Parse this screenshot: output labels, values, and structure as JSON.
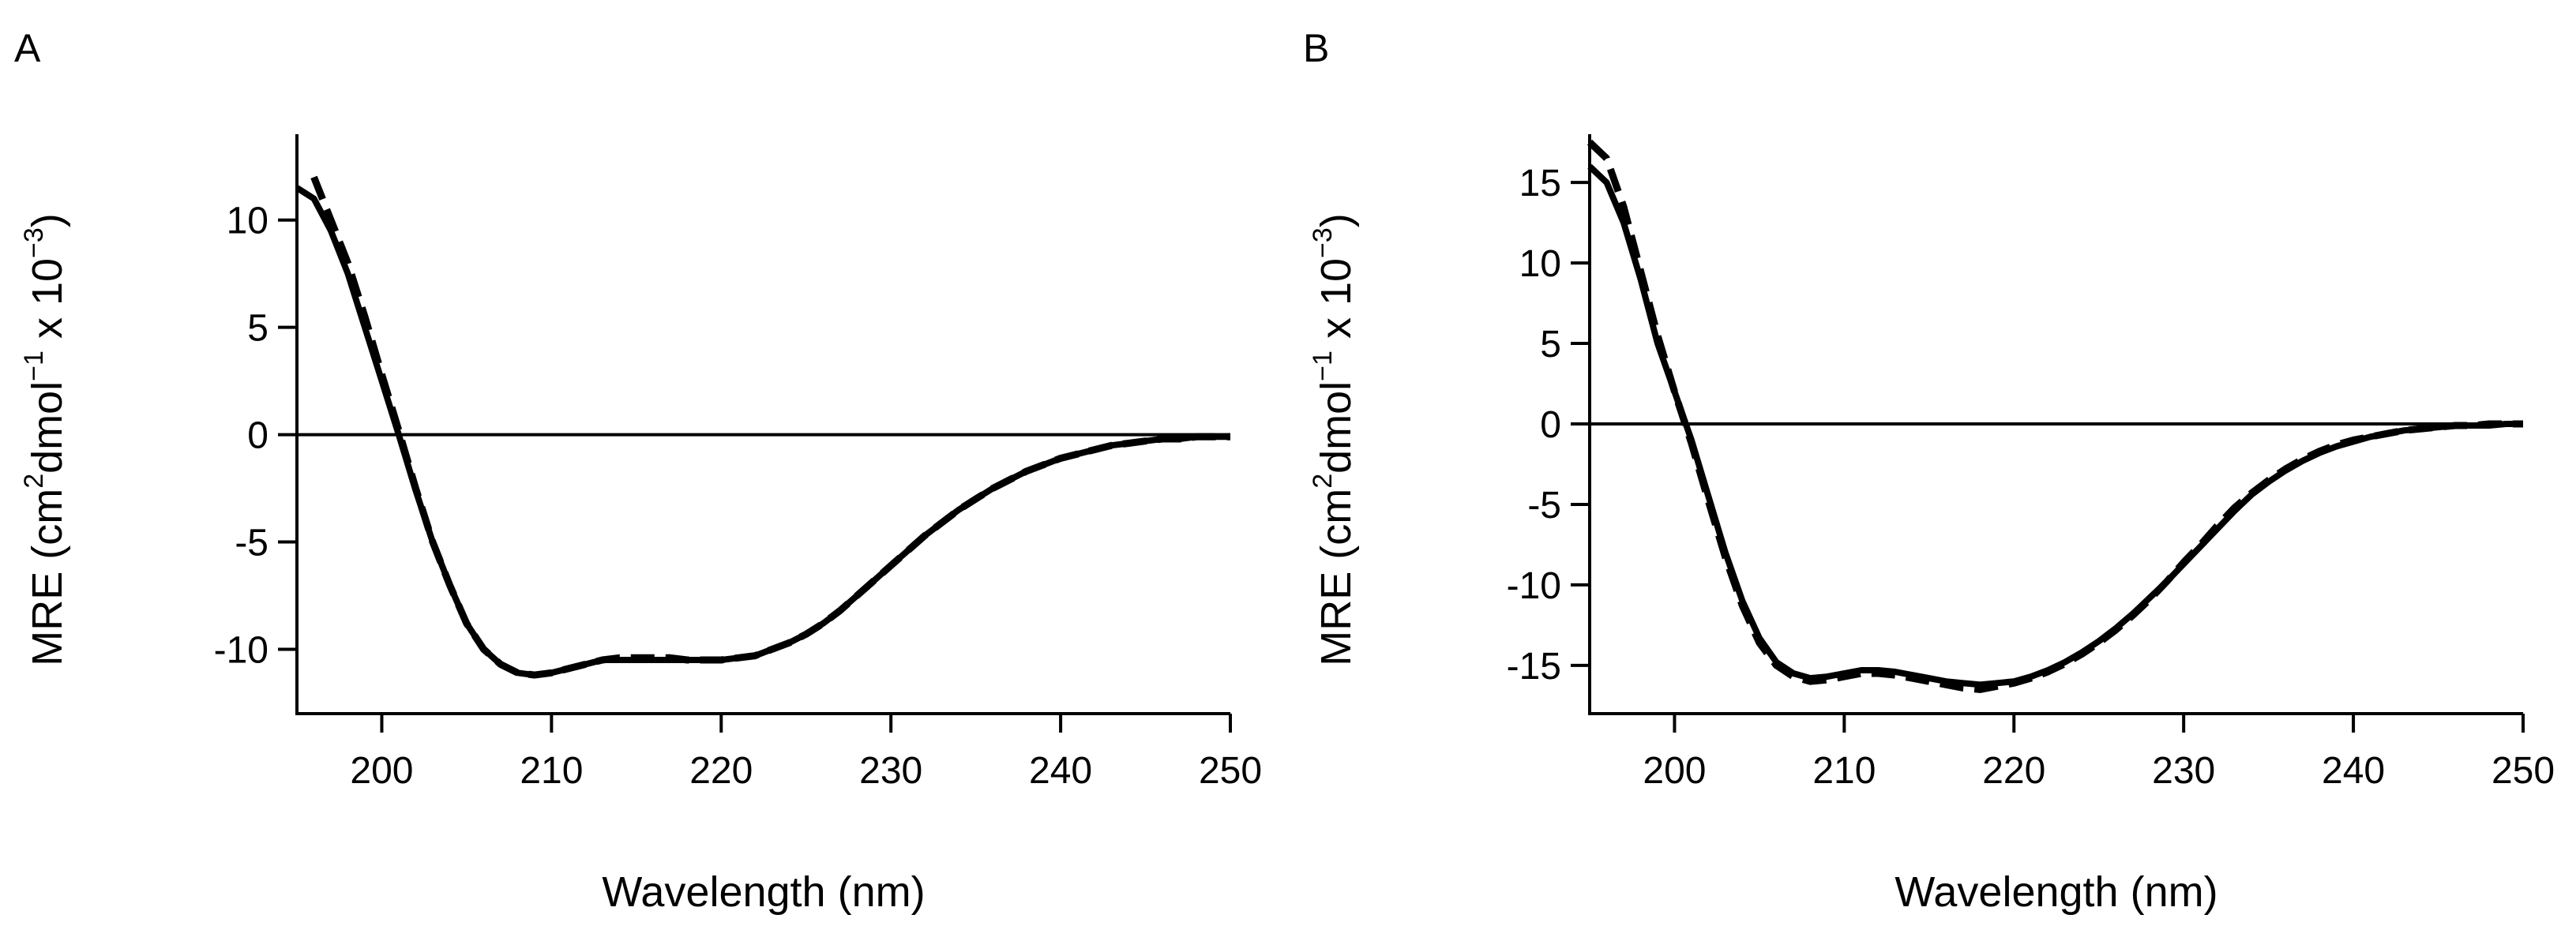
{
  "chart_data": [
    {
      "type": "line",
      "panel_label": "A",
      "xlabel": "Wavelength (nm)",
      "ylabel": {
        "prefix": "MRE (cm",
        "sup1": "2",
        "mid": "dmol",
        "sup2": "−1",
        "mid2": " x 10",
        "sup3": "−3",
        "suffix": ")"
      },
      "xlim": [
        195,
        250
      ],
      "ylim": [
        -13,
        14
      ],
      "xticks": [
        200,
        210,
        220,
        230,
        240,
        250
      ],
      "yticks": [
        -10,
        -5,
        0,
        5,
        10
      ],
      "zero_line": true,
      "series": [
        {
          "name": "solid",
          "style": "solid",
          "x": [
            195,
            196,
            197,
            198,
            199,
            200,
            201,
            202,
            203,
            204,
            205,
            206,
            207,
            208,
            209,
            210,
            211,
            212,
            213,
            214,
            215,
            216,
            217,
            218,
            219,
            220,
            221,
            222,
            223,
            224,
            225,
            226,
            227,
            228,
            229,
            230,
            231,
            232,
            233,
            234,
            235,
            236,
            237,
            238,
            239,
            240,
            241,
            242,
            243,
            244,
            245,
            246,
            247,
            248,
            249,
            250
          ],
          "y": [
            11.5,
            11.0,
            9.5,
            7.5,
            5.0,
            2.5,
            0.0,
            -2.6,
            -5.0,
            -7.0,
            -8.8,
            -10.0,
            -10.7,
            -11.1,
            -11.2,
            -11.1,
            -10.9,
            -10.7,
            -10.5,
            -10.5,
            -10.5,
            -10.5,
            -10.5,
            -10.5,
            -10.5,
            -10.5,
            -10.4,
            -10.3,
            -10.0,
            -9.7,
            -9.3,
            -8.8,
            -8.2,
            -7.5,
            -6.8,
            -6.1,
            -5.4,
            -4.7,
            -4.1,
            -3.5,
            -3.0,
            -2.5,
            -2.1,
            -1.7,
            -1.4,
            -1.1,
            -0.9,
            -0.7,
            -0.5,
            -0.4,
            -0.3,
            -0.2,
            -0.2,
            -0.1,
            -0.1,
            -0.1
          ]
        },
        {
          "name": "dashed",
          "style": "dashed",
          "x": [
            196,
            197,
            198,
            199,
            200,
            201,
            202,
            203,
            204,
            205,
            206,
            207,
            208,
            209,
            210,
            211,
            212,
            213,
            214,
            215,
            216,
            217,
            218,
            219,
            220,
            221,
            222,
            223,
            224,
            225,
            226,
            227,
            228,
            229,
            230,
            231,
            232,
            233,
            234,
            235,
            236,
            237,
            238,
            239,
            240,
            241,
            242,
            243,
            244,
            245,
            246,
            247,
            248,
            249,
            250
          ],
          "y": [
            12.0,
            10.0,
            8.0,
            5.5,
            2.8,
            0.2,
            -2.5,
            -5.0,
            -7.0,
            -8.8,
            -10.0,
            -10.7,
            -11.1,
            -11.2,
            -11.1,
            -10.9,
            -10.7,
            -10.5,
            -10.4,
            -10.4,
            -10.4,
            -10.4,
            -10.5,
            -10.5,
            -10.5,
            -10.4,
            -10.3,
            -10.0,
            -9.7,
            -9.3,
            -8.8,
            -8.2,
            -7.5,
            -6.8,
            -6.1,
            -5.4,
            -4.7,
            -4.1,
            -3.5,
            -3.0,
            -2.5,
            -2.1,
            -1.7,
            -1.4,
            -1.1,
            -0.9,
            -0.7,
            -0.5,
            -0.4,
            -0.3,
            -0.2,
            -0.2,
            -0.1,
            -0.1,
            -0.1
          ]
        }
      ]
    },
    {
      "type": "line",
      "panel_label": "B",
      "xlabel": "Wavelength (nm)",
      "ylabel": {
        "prefix": "MRE (cm",
        "sup1": "2",
        "mid": "dmol",
        "sup2": "−1",
        "mid2": " x 10",
        "sup3": "−3",
        "suffix": ")"
      },
      "xlim": [
        195,
        250
      ],
      "ylim": [
        -18,
        18
      ],
      "xticks": [
        200,
        210,
        220,
        230,
        240,
        250
      ],
      "yticks": [
        -15,
        -10,
        -5,
        0,
        5,
        10,
        15
      ],
      "zero_line": true,
      "series": [
        {
          "name": "solid",
          "style": "solid",
          "x": [
            195,
            196,
            197,
            198,
            199,
            200,
            201,
            202,
            203,
            204,
            205,
            206,
            207,
            208,
            209,
            210,
            211,
            212,
            213,
            214,
            215,
            216,
            217,
            218,
            219,
            220,
            221,
            222,
            223,
            224,
            225,
            226,
            227,
            228,
            229,
            230,
            231,
            232,
            233,
            234,
            235,
            236,
            237,
            238,
            239,
            240,
            241,
            242,
            243,
            244,
            245,
            246,
            247,
            248,
            249,
            250
          ],
          "y": [
            16.0,
            15.0,
            12.5,
            9.0,
            5.0,
            2.0,
            -1.0,
            -4.5,
            -8.0,
            -11.0,
            -13.3,
            -14.8,
            -15.5,
            -15.8,
            -15.7,
            -15.5,
            -15.3,
            -15.3,
            -15.4,
            -15.6,
            -15.8,
            -16.0,
            -16.1,
            -16.2,
            -16.1,
            -16.0,
            -15.7,
            -15.3,
            -14.8,
            -14.2,
            -13.5,
            -12.7,
            -11.8,
            -10.8,
            -9.8,
            -8.7,
            -7.6,
            -6.5,
            -5.4,
            -4.4,
            -3.6,
            -2.9,
            -2.3,
            -1.8,
            -1.4,
            -1.1,
            -0.8,
            -0.6,
            -0.4,
            -0.3,
            -0.2,
            -0.1,
            -0.1,
            -0.1,
            0.0,
            0.0
          ]
        },
        {
          "name": "dashed",
          "style": "dashed",
          "x": [
            195,
            196,
            197,
            198,
            199,
            200,
            201,
            202,
            203,
            204,
            205,
            206,
            207,
            208,
            209,
            210,
            211,
            212,
            213,
            214,
            215,
            216,
            217,
            218,
            219,
            220,
            221,
            222,
            223,
            224,
            225,
            226,
            227,
            228,
            229,
            230,
            231,
            232,
            233,
            234,
            235,
            236,
            237,
            238,
            239,
            240,
            241,
            242,
            243,
            244,
            245,
            246,
            247,
            248,
            249,
            250
          ],
          "y": [
            17.5,
            16.5,
            13.5,
            9.5,
            5.5,
            2.0,
            -1.2,
            -4.8,
            -8.3,
            -11.3,
            -13.6,
            -15.0,
            -15.7,
            -16.0,
            -15.9,
            -15.7,
            -15.5,
            -15.5,
            -15.6,
            -15.8,
            -16.0,
            -16.2,
            -16.4,
            -16.5,
            -16.3,
            -16.1,
            -15.8,
            -15.4,
            -14.9,
            -14.3,
            -13.6,
            -12.8,
            -11.9,
            -10.9,
            -9.8,
            -8.6,
            -7.5,
            -6.3,
            -5.2,
            -4.3,
            -3.5,
            -2.8,
            -2.2,
            -1.7,
            -1.3,
            -1.0,
            -0.8,
            -0.6,
            -0.4,
            -0.3,
            -0.2,
            -0.1,
            -0.1,
            0.0,
            0.0,
            0.0
          ]
        }
      ]
    }
  ]
}
